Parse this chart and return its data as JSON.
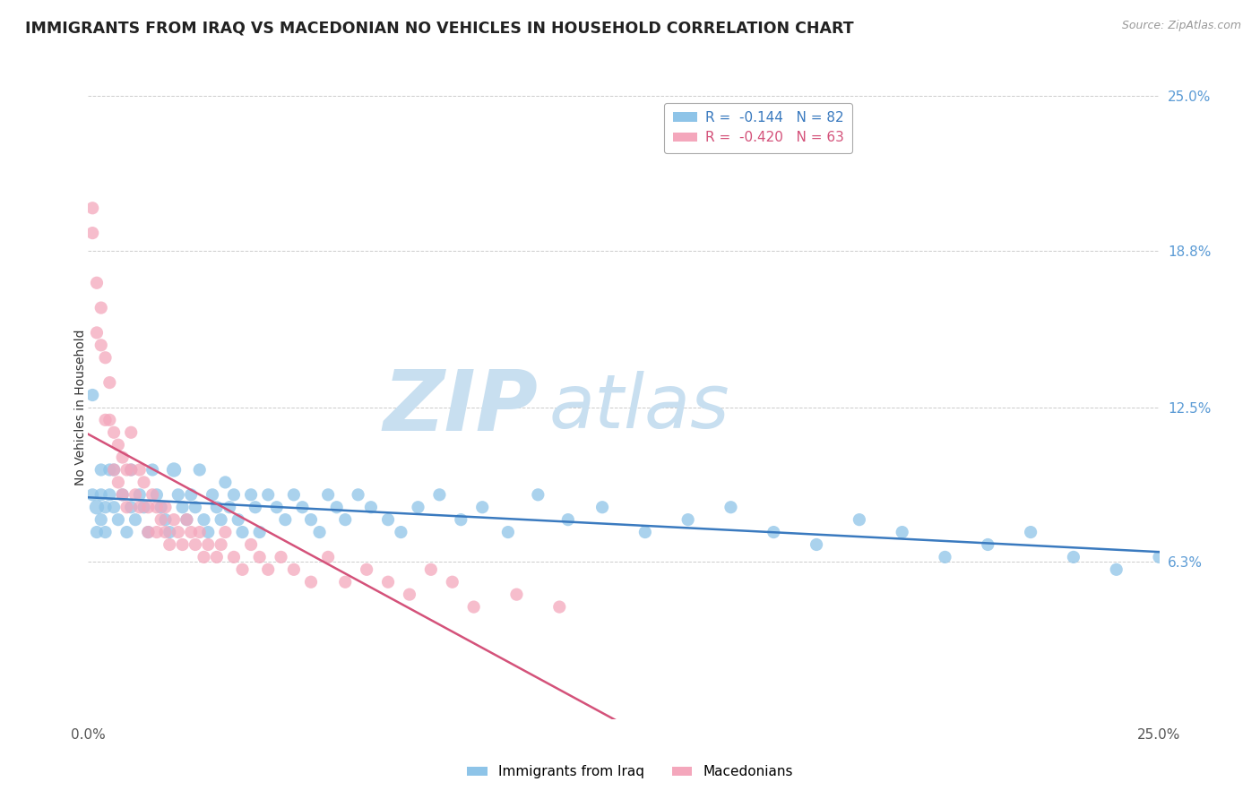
{
  "title": "IMMIGRANTS FROM IRAQ VS MACEDONIAN NO VEHICLES IN HOUSEHOLD CORRELATION CHART",
  "source_text": "Source: ZipAtlas.com",
  "ylabel": "No Vehicles in Household",
  "legend_r1": "R = -0.144",
  "legend_n1": "N = 82",
  "legend_r2": "R = -0.420",
  "legend_n2": "N = 63",
  "color_iraq": "#8ec4e8",
  "color_mac": "#f4a7bc",
  "trendline_iraq_color": "#3a7abf",
  "trendline_mac_color": "#d4527a",
  "background_color": "#ffffff",
  "watermark_zip": "ZIP",
  "watermark_atlas": "atlas",
  "watermark_color_zip": "#c8dff0",
  "watermark_color_atlas": "#c8dff0",
  "grid_color": "#cccccc",
  "right_axis_color": "#5b9bd5",
  "iraq_x": [
    0.001,
    0.001,
    0.002,
    0.002,
    0.003,
    0.003,
    0.003,
    0.004,
    0.004,
    0.005,
    0.005,
    0.006,
    0.006,
    0.007,
    0.008,
    0.009,
    0.01,
    0.01,
    0.011,
    0.012,
    0.013,
    0.014,
    0.015,
    0.016,
    0.017,
    0.018,
    0.019,
    0.02,
    0.021,
    0.022,
    0.023,
    0.024,
    0.025,
    0.026,
    0.027,
    0.028,
    0.029,
    0.03,
    0.031,
    0.032,
    0.033,
    0.034,
    0.035,
    0.036,
    0.038,
    0.039,
    0.04,
    0.042,
    0.044,
    0.046,
    0.048,
    0.05,
    0.052,
    0.054,
    0.056,
    0.058,
    0.06,
    0.063,
    0.066,
    0.07,
    0.073,
    0.077,
    0.082,
    0.087,
    0.092,
    0.098,
    0.105,
    0.112,
    0.12,
    0.13,
    0.14,
    0.15,
    0.16,
    0.17,
    0.18,
    0.19,
    0.2,
    0.21,
    0.22,
    0.23,
    0.24,
    0.25
  ],
  "iraq_y": [
    0.09,
    0.13,
    0.085,
    0.075,
    0.1,
    0.09,
    0.08,
    0.085,
    0.075,
    0.1,
    0.09,
    0.1,
    0.085,
    0.08,
    0.09,
    0.075,
    0.1,
    0.085,
    0.08,
    0.09,
    0.085,
    0.075,
    0.1,
    0.09,
    0.085,
    0.08,
    0.075,
    0.1,
    0.09,
    0.085,
    0.08,
    0.09,
    0.085,
    0.1,
    0.08,
    0.075,
    0.09,
    0.085,
    0.08,
    0.095,
    0.085,
    0.09,
    0.08,
    0.075,
    0.09,
    0.085,
    0.075,
    0.09,
    0.085,
    0.08,
    0.09,
    0.085,
    0.08,
    0.075,
    0.09,
    0.085,
    0.08,
    0.09,
    0.085,
    0.08,
    0.075,
    0.085,
    0.09,
    0.08,
    0.085,
    0.075,
    0.09,
    0.08,
    0.085,
    0.075,
    0.08,
    0.085,
    0.075,
    0.07,
    0.08,
    0.075,
    0.065,
    0.07,
    0.075,
    0.065,
    0.06,
    0.065
  ],
  "iraq_sizes": [
    30,
    30,
    40,
    30,
    30,
    30,
    30,
    30,
    30,
    30,
    30,
    30,
    30,
    30,
    30,
    30,
    30,
    30,
    30,
    30,
    30,
    30,
    30,
    30,
    30,
    30,
    30,
    40,
    30,
    30,
    30,
    30,
    30,
    30,
    30,
    30,
    30,
    30,
    30,
    30,
    30,
    30,
    30,
    30,
    30,
    30,
    30,
    30,
    30,
    30,
    30,
    30,
    30,
    30,
    30,
    30,
    30,
    30,
    30,
    30,
    30,
    30,
    30,
    30,
    30,
    30,
    30,
    30,
    30,
    30,
    30,
    30,
    30,
    30,
    30,
    30,
    30,
    30,
    30,
    30,
    30,
    30
  ],
  "mac_x": [
    0.001,
    0.001,
    0.002,
    0.002,
    0.003,
    0.003,
    0.004,
    0.004,
    0.005,
    0.005,
    0.006,
    0.006,
    0.007,
    0.007,
    0.008,
    0.008,
    0.009,
    0.009,
    0.01,
    0.01,
    0.011,
    0.012,
    0.012,
    0.013,
    0.014,
    0.014,
    0.015,
    0.016,
    0.016,
    0.017,
    0.018,
    0.018,
    0.019,
    0.02,
    0.021,
    0.022,
    0.023,
    0.024,
    0.025,
    0.026,
    0.027,
    0.028,
    0.03,
    0.031,
    0.032,
    0.034,
    0.036,
    0.038,
    0.04,
    0.042,
    0.045,
    0.048,
    0.052,
    0.056,
    0.06,
    0.065,
    0.07,
    0.075,
    0.08,
    0.085,
    0.09,
    0.1,
    0.11
  ],
  "mac_y": [
    0.205,
    0.195,
    0.175,
    0.155,
    0.165,
    0.15,
    0.145,
    0.12,
    0.135,
    0.12,
    0.115,
    0.1,
    0.11,
    0.095,
    0.105,
    0.09,
    0.1,
    0.085,
    0.115,
    0.1,
    0.09,
    0.1,
    0.085,
    0.095,
    0.085,
    0.075,
    0.09,
    0.085,
    0.075,
    0.08,
    0.085,
    0.075,
    0.07,
    0.08,
    0.075,
    0.07,
    0.08,
    0.075,
    0.07,
    0.075,
    0.065,
    0.07,
    0.065,
    0.07,
    0.075,
    0.065,
    0.06,
    0.07,
    0.065,
    0.06,
    0.065,
    0.06,
    0.055,
    0.065,
    0.055,
    0.06,
    0.055,
    0.05,
    0.06,
    0.055,
    0.045,
    0.05,
    0.045
  ],
  "mac_sizes": [
    30,
    30,
    30,
    30,
    30,
    30,
    30,
    30,
    30,
    30,
    30,
    30,
    30,
    30,
    30,
    30,
    30,
    30,
    30,
    30,
    30,
    30,
    30,
    30,
    30,
    30,
    30,
    30,
    30,
    30,
    30,
    30,
    30,
    30,
    30,
    30,
    30,
    30,
    30,
    30,
    30,
    30,
    30,
    30,
    30,
    30,
    30,
    30,
    30,
    30,
    30,
    30,
    30,
    30,
    30,
    30,
    30,
    30,
    30,
    30,
    30,
    30,
    30
  ],
  "xlim": [
    0.0,
    0.25
  ],
  "ylim": [
    0.0,
    0.25
  ],
  "yticks": [
    0.0,
    0.063,
    0.125,
    0.188,
    0.25
  ],
  "ytick_labels_right": [
    "",
    "6.3%",
    "12.5%",
    "18.8%",
    "25.0%"
  ],
  "xticks": [
    0.0,
    0.25
  ],
  "xtick_labels": [
    "0.0%",
    "25.0%"
  ]
}
